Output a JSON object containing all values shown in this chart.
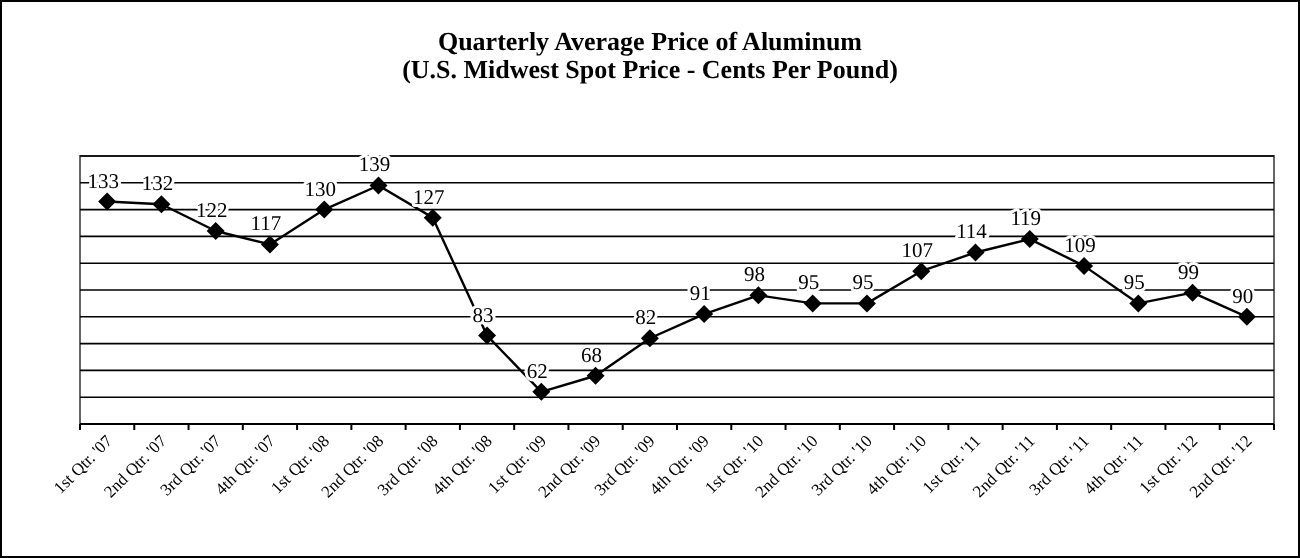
{
  "chart_data": {
    "type": "line",
    "title": "Quarterly Average Price of Aluminum",
    "subtitle": "(U.S. Midwest Spot Price - Cents Per Pound)",
    "categories": [
      "1st Qtr. '07",
      "2nd Qtr. '07",
      "3rd Qtr. '07",
      "4th Qtr. '07",
      "1st Qtr. '08",
      "2nd Qtr. '08",
      "3rd Qtr. '08",
      "4th Qtr. '08",
      "1st Qtr. '09",
      "2nd Qtr. '09",
      "3rd Qtr. '09",
      "4th Qtr. '09",
      "1st Qtr. '10",
      "2nd Qtr. '10",
      "3rd Qtr. '10",
      "4th Qtr. '10",
      "1st Qtr. '11",
      "2nd Qtr. '11",
      "3rd Qtr. '11",
      "4th Qtr. '11",
      "1st Qtr. '12",
      "2nd Qtr. '12"
    ],
    "series": [
      {
        "color": "#000000",
        "values": [
          133,
          132,
          122,
          117,
          130,
          139,
          127,
          83,
          62,
          68,
          82,
          91,
          98,
          95,
          95,
          107,
          114,
          119,
          109,
          95,
          99,
          90
        ]
      }
    ],
    "ylim": [
      50,
      150
    ],
    "yticks": [
      {
        "value": 50,
        "label": null
      },
      {
        "value": 60,
        "label": null
      },
      {
        "value": 70,
        "label": null
      },
      {
        "value": 80,
        "label": null
      },
      {
        "value": 90,
        "label": null
      },
      {
        "value": 100,
        "label": null
      },
      {
        "value": 110,
        "label": null
      },
      {
        "value": 120,
        "label": null
      },
      {
        "value": 130,
        "label": null
      },
      {
        "value": 140,
        "label": null
      },
      {
        "value": 150,
        "label": null
      }
    ],
    "grid": "y",
    "tick_labels": "x",
    "data_labels": true,
    "marker": "diamond",
    "line_style": "solid"
  }
}
